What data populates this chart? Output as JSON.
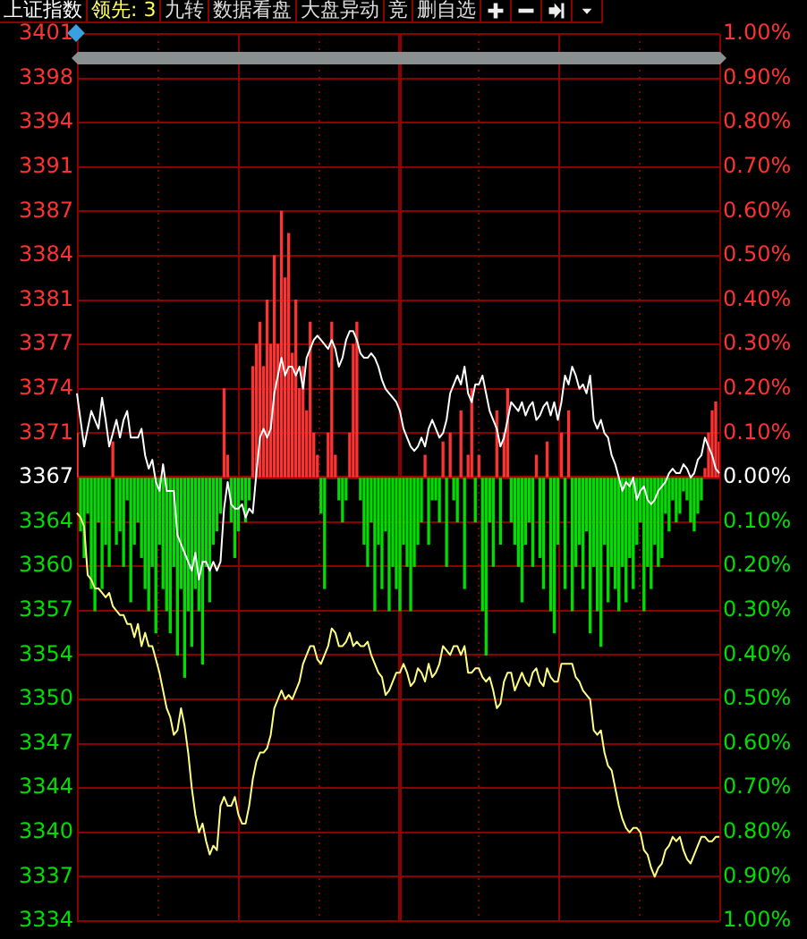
{
  "chart_data": {
    "type": "line",
    "title": "上证指数",
    "stacked": true,
    "annotations": [
      "领先: 3",
      "九转",
      "数据看盘",
      "大盘异动",
      "竞",
      "删自选"
    ],
    "categories": [
      null,
      null,
      null,
      null,
      null,
      null,
      null,
      null,
      null,
      null,
      null,
      null,
      null,
      null,
      null,
      null,
      null,
      null,
      null,
      null,
      null,
      null,
      null,
      null,
      null,
      null,
      null,
      null,
      null,
      null,
      null,
      null,
      null,
      null,
      null,
      null,
      null,
      null,
      null,
      null,
      null,
      null,
      null,
      null,
      null,
      null,
      null,
      null,
      null,
      null,
      null,
      null,
      null,
      null,
      null,
      null,
      null,
      null,
      null,
      null,
      null,
      null,
      null,
      null,
      null,
      null,
      null,
      null,
      null,
      null,
      null,
      null,
      null,
      null,
      null,
      null,
      null,
      null,
      null,
      null,
      null,
      null,
      null,
      null,
      null,
      null,
      null,
      null,
      null,
      null,
      null,
      null,
      null,
      null,
      null,
      null,
      null,
      null,
      null,
      null,
      null,
      null,
      null,
      null,
      null,
      null,
      null,
      null,
      null,
      null,
      null,
      null,
      null,
      null,
      null,
      null,
      null,
      null,
      null,
      null,
      null,
      null,
      null,
      null,
      null,
      null,
      null,
      null,
      null,
      null,
      null,
      null,
      null,
      null,
      null,
      null,
      null,
      null,
      null,
      null,
      null,
      null,
      null,
      null,
      null,
      null,
      null,
      null,
      null,
      null,
      null,
      null,
      null,
      null,
      null,
      null,
      null,
      null,
      null,
      null,
      null,
      null,
      null,
      null,
      null,
      null,
      null,
      null,
      null,
      null,
      null,
      null,
      null,
      null,
      null,
      null,
      null,
      null,
      null,
      null
    ],
    "series": [
      {
        "type": "bar",
        "axis": "y2",
        "color": "#ff3232",
        "values": [
          0.1,
          null,
          null,
          null,
          null,
          null,
          null,
          null,
          null,
          null,
          0.08,
          null,
          null,
          null,
          null,
          null,
          null,
          null,
          null,
          null,
          null,
          null,
          null,
          null,
          null,
          null,
          null,
          null,
          null,
          null,
          null,
          null,
          null,
          null,
          null,
          null,
          null,
          null,
          null,
          null,
          null,
          0.2,
          0.05,
          null,
          null,
          null,
          null,
          null,
          null,
          0.25,
          0.3,
          0.35,
          0.25,
          0.4,
          0.3,
          0.5,
          0.3,
          0.6,
          0.45,
          0.55,
          0.28,
          0.4,
          0.2,
          0.25,
          0.15,
          0.35,
          0.1,
          0.05,
          null,
          null,
          0.1,
          0.35,
          0.05,
          null,
          null,
          null,
          0.1,
          0.3,
          0.35,
          null,
          null,
          null,
          null,
          null,
          null,
          null,
          null,
          null,
          null,
          null,
          null,
          null,
          null,
          null,
          null,
          null,
          null,
          0.05,
          null,
          null,
          null,
          null,
          0.08,
          null,
          0.1,
          null,
          null,
          0.15,
          null,
          0.05,
          0.2,
          null,
          0.05,
          null,
          null,
          null,
          null,
          0.15,
          null,
          0.1,
          0.2,
          null,
          null,
          null,
          null,
          null,
          null,
          null,
          0.05,
          null,
          null,
          0.08,
          null,
          null,
          null,
          0.1,
          null,
          0.15,
          null,
          null,
          null,
          null,
          null,
          null,
          null,
          null,
          null,
          null,
          null,
          null,
          null,
          null,
          null,
          null,
          null,
          null,
          null,
          null,
          null,
          null,
          null,
          null,
          null,
          null,
          null,
          null,
          null,
          null,
          null,
          null,
          null,
          null,
          null,
          null,
          null,
          0.02,
          0.1,
          0.15,
          0.17,
          0.08
        ]
      },
      {
        "type": "bar",
        "axis": "y2",
        "color": "#00dd00",
        "values": [
          null,
          -0.12,
          -0.18,
          -0.08,
          -0.25,
          -0.3,
          -0.1,
          -0.25,
          -0.15,
          -0.2,
          null,
          -0.15,
          -0.12,
          -0.2,
          -0.05,
          -0.28,
          -0.15,
          -0.1,
          -0.18,
          -0.25,
          -0.3,
          -0.2,
          -0.35,
          -0.15,
          -0.25,
          -0.3,
          -0.35,
          -0.2,
          -0.4,
          -0.25,
          -0.45,
          -0.3,
          -0.38,
          -0.25,
          -0.3,
          -0.42,
          -0.2,
          -0.28,
          -0.15,
          -0.12,
          -0.08,
          null,
          null,
          -0.1,
          -0.18,
          -0.12,
          -0.05,
          -0.1,
          -0.05,
          null,
          null,
          null,
          null,
          null,
          null,
          null,
          null,
          null,
          null,
          null,
          null,
          null,
          null,
          null,
          null,
          null,
          null,
          null,
          -0.08,
          -0.25,
          null,
          null,
          null,
          -0.05,
          -0.1,
          -0.05,
          null,
          null,
          null,
          -0.05,
          -0.15,
          -0.2,
          -0.1,
          -0.3,
          -0.15,
          -0.25,
          -0.12,
          -0.3,
          -0.2,
          -0.25,
          -0.3,
          -0.15,
          -0.2,
          -0.3,
          -0.2,
          -0.15,
          -0.1,
          null,
          -0.15,
          -0.05,
          -0.05,
          -0.1,
          null,
          -0.2,
          null,
          -0.05,
          -0.1,
          null,
          -0.25,
          null,
          null,
          -0.1,
          null,
          -0.3,
          -0.4,
          -0.1,
          -0.2,
          null,
          -0.15,
          null,
          null,
          -0.1,
          -0.15,
          -0.2,
          -0.28,
          -0.15,
          -0.1,
          -0.2,
          null,
          -0.18,
          -0.25,
          null,
          -0.3,
          -0.35,
          -0.15,
          null,
          -0.25,
          null,
          -0.3,
          -0.2,
          -0.15,
          -0.25,
          -0.12,
          -0.35,
          -0.2,
          -0.3,
          -0.38,
          -0.15,
          -0.28,
          -0.2,
          -0.25,
          -0.3,
          -0.2,
          -0.28,
          -0.18,
          -0.25,
          -0.15,
          -0.1,
          -0.3,
          -0.2,
          -0.25,
          -0.15,
          -0.2,
          -0.18,
          -0.08,
          -0.12,
          -0.05,
          -0.1,
          -0.08,
          -0.03,
          -0.05,
          -0.1,
          -0.12,
          -0.08,
          -0.05,
          null,
          null,
          null,
          null,
          null
        ]
      },
      {
        "axis": "y2",
        "color": "#ffffff",
        "values": [
          0.19,
          0.13,
          0.07,
          0.11,
          0.15,
          0.13,
          0.11,
          0.18,
          0.13,
          0.07,
          0.1,
          0.13,
          0.09,
          0.13,
          0.15,
          0.09,
          0.09,
          0.09,
          0.11,
          0.05,
          0.02,
          0.04,
          -0.01,
          -0.03,
          0.03,
          -0.03,
          -0.03,
          -0.03,
          -0.13,
          -0.15,
          -0.17,
          -0.19,
          -0.21,
          -0.17,
          -0.23,
          -0.19,
          -0.19,
          -0.21,
          -0.19,
          -0.21,
          -0.19,
          -0.07,
          -0.01,
          -0.06,
          -0.07,
          -0.07,
          -0.06,
          -0.09,
          -0.07,
          -0.08,
          0.01,
          0.09,
          0.11,
          0.09,
          0.11,
          0.19,
          0.23,
          0.27,
          0.23,
          0.25,
          0.25,
          0.23,
          0.25,
          0.2,
          0.27,
          0.29,
          0.31,
          0.32,
          0.31,
          0.3,
          0.29,
          0.31,
          0.29,
          0.25,
          0.27,
          0.31,
          0.33,
          0.33,
          0.31,
          0.28,
          0.27,
          0.27,
          0.28,
          0.27,
          0.25,
          0.22,
          0.2,
          0.19,
          0.18,
          0.17,
          0.15,
          0.11,
          0.09,
          0.07,
          0.06,
          0.07,
          0.09,
          0.07,
          0.11,
          0.13,
          0.11,
          0.09,
          0.1,
          0.13,
          0.19,
          0.21,
          0.23,
          0.21,
          0.25,
          0.19,
          0.17,
          0.21,
          0.21,
          0.23,
          0.19,
          0.15,
          0.13,
          0.11,
          0.07,
          0.09,
          0.13,
          0.17,
          0.16,
          0.15,
          0.17,
          0.14,
          0.16,
          0.17,
          0.13,
          0.14,
          0.16,
          0.17,
          0.14,
          0.17,
          0.13,
          0.17,
          0.23,
          0.21,
          0.25,
          0.23,
          0.2,
          0.21,
          0.19,
          0.23,
          0.13,
          0.11,
          0.13,
          0.1,
          0.09,
          0.05,
          0.03,
          0,
          -0.03,
          -0.01,
          -0.02,
          0,
          -0.05,
          -0.03,
          -0.02,
          -0.05,
          -0.06,
          -0.05,
          -0.03,
          -0.02,
          -0.01,
          0.01,
          0.02,
          0.01,
          0.01,
          0.03,
          0.02,
          0,
          0.01,
          0.04,
          0.05,
          0.09,
          0.07,
          0.05,
          0.02,
          0.01
        ]
      },
      {
        "axis": "y2",
        "color": "#ffff80",
        "values": [
          -0.08,
          -0.09,
          -0.11,
          -0.22,
          -0.23,
          -0.25,
          -0.25,
          -0.26,
          -0.27,
          -0.26,
          -0.29,
          -0.3,
          -0.31,
          -0.31,
          -0.33,
          -0.33,
          -0.36,
          -0.33,
          -0.38,
          -0.35,
          -0.38,
          -0.38,
          -0.41,
          -0.44,
          -0.48,
          -0.52,
          -0.54,
          -0.58,
          -0.57,
          -0.52,
          -0.56,
          -0.62,
          -0.7,
          -0.76,
          -0.8,
          -0.78,
          -0.82,
          -0.85,
          -0.83,
          -0.84,
          -0.74,
          -0.72,
          -0.74,
          -0.74,
          -0.72,
          -0.76,
          -0.78,
          -0.78,
          -0.74,
          -0.68,
          -0.64,
          -0.62,
          -0.62,
          -0.61,
          -0.58,
          -0.52,
          -0.5,
          -0.48,
          -0.5,
          -0.49,
          -0.5,
          -0.48,
          -0.46,
          -0.42,
          -0.4,
          -0.38,
          -0.38,
          -0.41,
          -0.42,
          -0.4,
          -0.38,
          -0.34,
          -0.35,
          -0.38,
          -0.38,
          -0.37,
          -0.35,
          -0.38,
          -0.37,
          -0.38,
          -0.38,
          -0.37,
          -0.4,
          -0.42,
          -0.44,
          -0.45,
          -0.49,
          -0.48,
          -0.46,
          -0.44,
          -0.44,
          -0.42,
          -0.44,
          -0.47,
          -0.46,
          -0.43,
          -0.44,
          -0.46,
          -0.42,
          -0.45,
          -0.44,
          -0.42,
          -0.38,
          -0.39,
          -0.4,
          -0.38,
          -0.38,
          -0.4,
          -0.38,
          -0.44,
          -0.44,
          -0.43,
          -0.43,
          -0.45,
          -0.46,
          -0.45,
          -0.48,
          -0.52,
          -0.51,
          -0.46,
          -0.44,
          -0.44,
          -0.48,
          -0.46,
          -0.44,
          -0.46,
          -0.47,
          -0.44,
          -0.43,
          -0.46,
          -0.47,
          -0.43,
          -0.45,
          -0.46,
          -0.46,
          -0.42,
          -0.42,
          -0.42,
          -0.42,
          -0.45,
          -0.46,
          -0.48,
          -0.49,
          -0.5,
          -0.57,
          -0.58,
          -0.57,
          -0.62,
          -0.65,
          -0.66,
          -0.7,
          -0.74,
          -0.77,
          -0.79,
          -0.8,
          -0.79,
          -0.79,
          -0.8,
          -0.84,
          -0.85,
          -0.88,
          -0.9,
          -0.88,
          -0.87,
          -0.84,
          -0.83,
          -0.81,
          -0.82,
          -0.81,
          -0.84,
          -0.86,
          -0.87,
          -0.85,
          -0.83,
          -0.81,
          -0.81,
          -0.82,
          -0.82,
          -0.81,
          -0.81
        ]
      }
    ],
    "ylim": [
      3333.52,
      3400.92
    ],
    "yticks": [
      {
        "value": 3400.92,
        "label": "3401"
      },
      {
        "value": 3397.55,
        "label": "3398"
      },
      {
        "value": 3394.18,
        "label": "3394"
      },
      {
        "value": 3390.81,
        "label": "3391"
      },
      {
        "value": 3387.44,
        "label": "3387"
      },
      {
        "value": 3384.07,
        "label": "3384"
      },
      {
        "value": 3380.7,
        "label": "3381"
      },
      {
        "value": 3377.33,
        "label": "3377"
      },
      {
        "value": 3373.96,
        "label": "3374"
      },
      {
        "value": 3370.59,
        "label": "3371"
      },
      {
        "value": 3367.22,
        "label": "3367"
      },
      {
        "value": 3363.85,
        "label": "3364"
      },
      {
        "value": 3360.48,
        "label": "3360"
      },
      {
        "value": 3357.11,
        "label": "3357"
      },
      {
        "value": 3353.74,
        "label": "3354"
      },
      {
        "value": 3350.37,
        "label": "3350"
      },
      {
        "value": 3347,
        "label": "3347"
      },
      {
        "value": 3343.63,
        "label": "3344"
      },
      {
        "value": 3340.26,
        "label": "3340"
      },
      {
        "value": 3336.89,
        "label": "3337"
      },
      {
        "value": 3333.52,
        "label": "3334"
      }
    ],
    "y2lim": [
      -1,
      1
    ],
    "y2ticks": [
      {
        "value": 1,
        "label": "1.00%"
      },
      {
        "value": 0.9,
        "label": "0.90%"
      },
      {
        "value": 0.8,
        "label": "0.80%"
      },
      {
        "value": 0.7,
        "label": "0.70%"
      },
      {
        "value": 0.6,
        "label": "0.60%"
      },
      {
        "value": 0.5,
        "label": "0.50%"
      },
      {
        "value": 0.4,
        "label": "0.40%"
      },
      {
        "value": 0.3,
        "label": "0.30%"
      },
      {
        "value": 0.2,
        "label": "0.20%"
      },
      {
        "value": 0.1,
        "label": "0.10%"
      },
      {
        "value": 0,
        "label": "0.00%"
      },
      {
        "value": -0.1,
        "label": "0.10%"
      },
      {
        "value": -0.2,
        "label": "0.20%"
      },
      {
        "value": -0.3,
        "label": "0.30%"
      },
      {
        "value": -0.4,
        "label": "0.40%"
      },
      {
        "value": -0.5,
        "label": "0.50%"
      },
      {
        "value": -0.6,
        "label": "0.60%"
      },
      {
        "value": -0.7,
        "label": "0.70%"
      },
      {
        "value": -0.8,
        "label": "0.80%"
      },
      {
        "value": -0.9,
        "label": "0.90%"
      },
      {
        "value": -1,
        "label": "1.00%"
      }
    ],
    "ref_lines": [
      {
        "axis": "y2",
        "value": 0,
        "color": "#a00000"
      }
    ],
    "grid": true,
    "legend": false,
    "marker": "none",
    "line_style": "solid"
  }
}
